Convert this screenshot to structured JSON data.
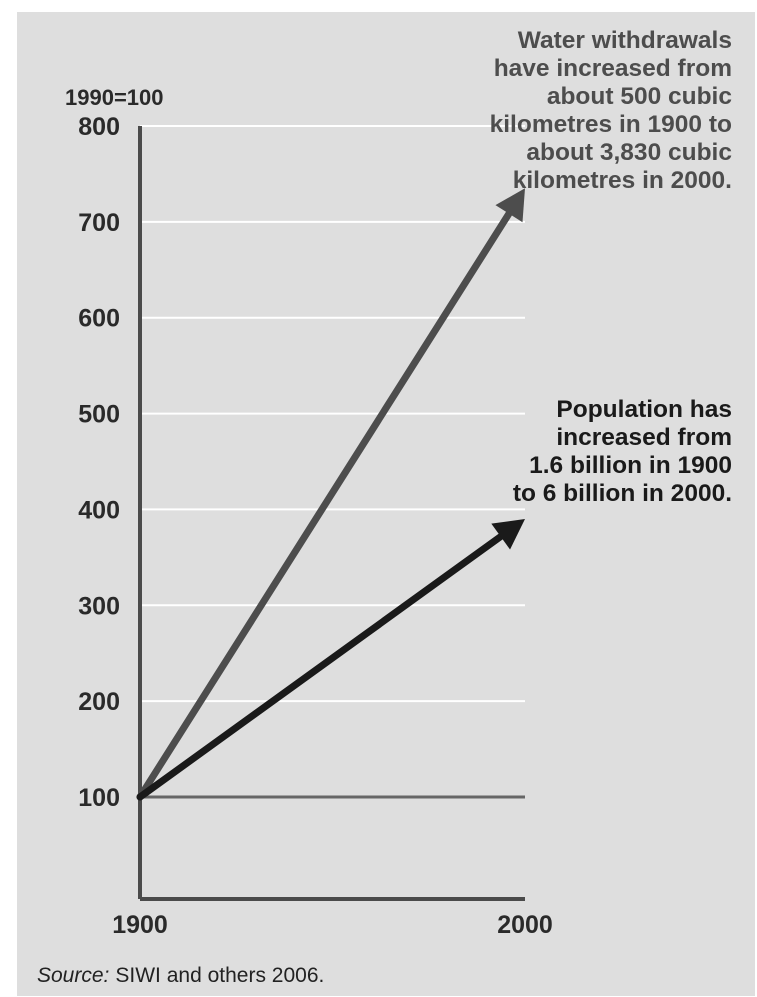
{
  "chart_data": {
    "type": "line",
    "index_label": "1990=100",
    "x_ticks": [
      "1900",
      "2000"
    ],
    "y_ticks": [
      100,
      200,
      300,
      400,
      500,
      600,
      700,
      800
    ],
    "xlim": [
      1900,
      2000
    ],
    "ylim": [
      0,
      800
    ],
    "grid": true,
    "series": [
      {
        "key": "water",
        "values": [
          [
            1900,
            100
          ],
          [
            2000,
            735
          ]
        ],
        "color": "#4d4d4d",
        "annotation": [
          "Water withdrawals",
          "have increased from",
          "about 500 cubic",
          "kilometres in 1900 to",
          "about 3,830 cubic",
          "kilometres in 2000."
        ]
      },
      {
        "key": "population",
        "values": [
          [
            1900,
            100
          ],
          [
            2000,
            390
          ]
        ],
        "color": "#1a1a1a",
        "annotation": [
          "Population has",
          "increased from",
          "1.6 billion in 1900",
          "to 6 billion in 2000."
        ]
      }
    ],
    "source_label": "Source:",
    "source_text": "SIWI and others 2006."
  }
}
